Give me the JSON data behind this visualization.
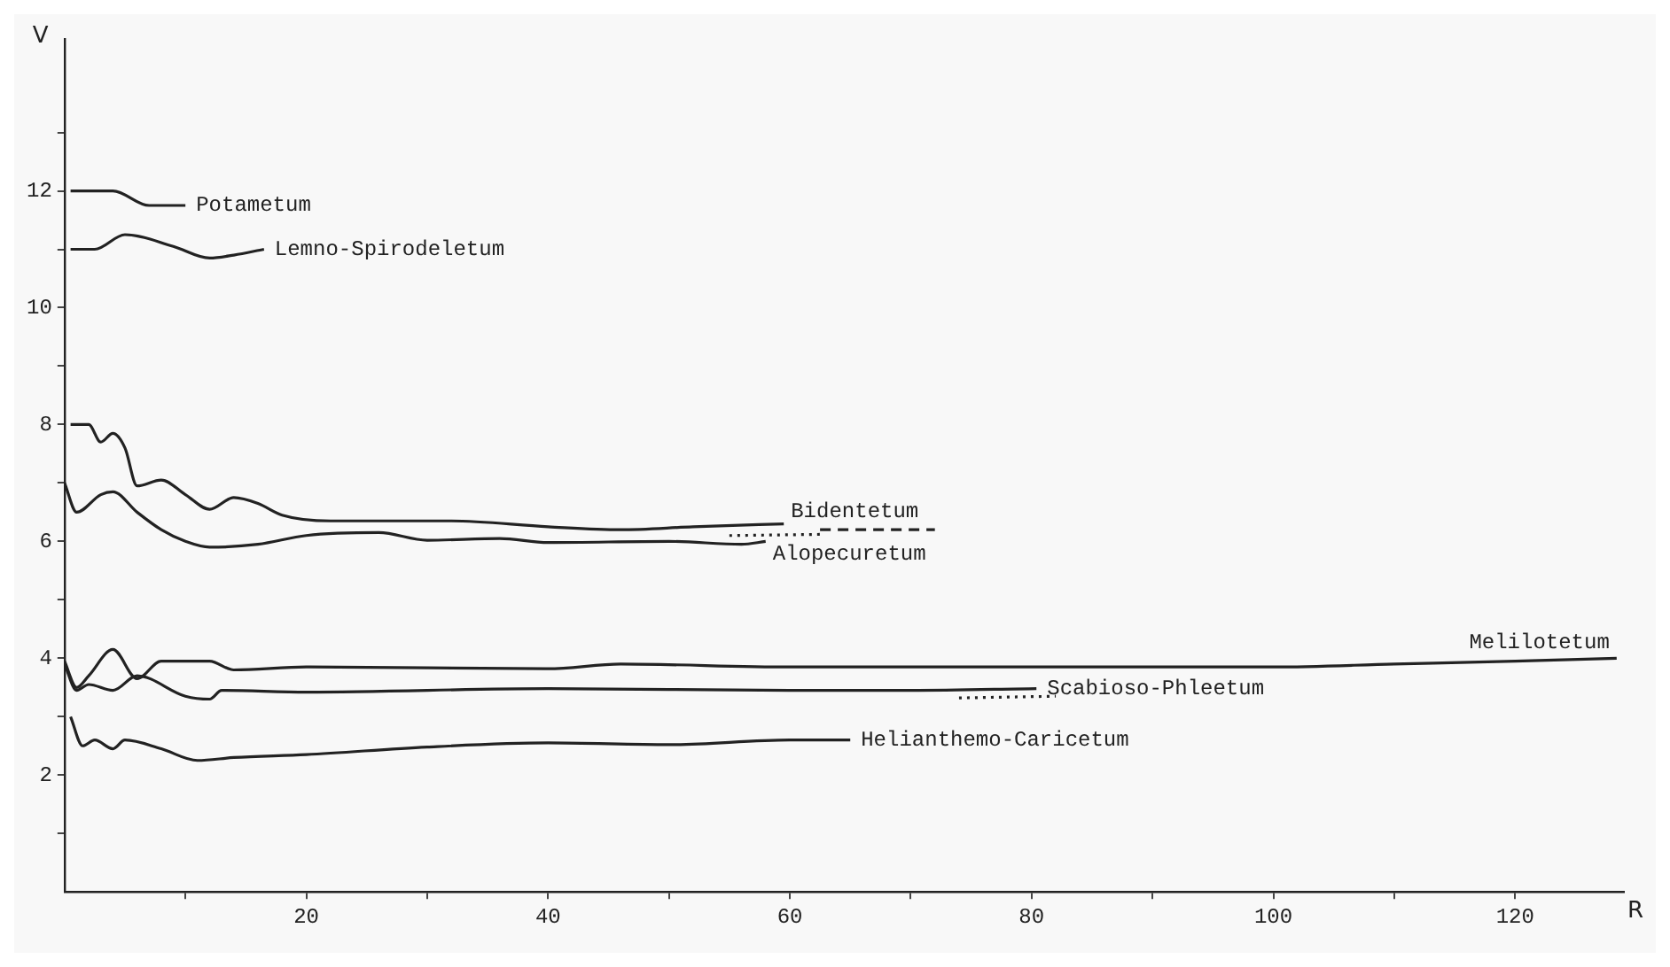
{
  "chart_data": {
    "type": "line",
    "xlabel": "R",
    "ylabel": "V",
    "xlim": [
      0,
      129
    ],
    "ylim": [
      0,
      14.6
    ],
    "xticks": [
      {
        "value": 10,
        "label": null
      },
      20,
      {
        "value": 30,
        "label": null
      },
      40,
      {
        "value": 50,
        "label": null
      },
      60,
      {
        "value": 70,
        "label": null
      },
      80,
      {
        "value": 90,
        "label": null
      },
      100,
      {
        "value": 110,
        "label": null
      },
      120
    ],
    "yticks": [
      {
        "value": 1,
        "label": null
      },
      2,
      {
        "value": 3,
        "label": null
      },
      4,
      {
        "value": 5,
        "label": null
      },
      6,
      {
        "value": 7,
        "label": null
      },
      8,
      {
        "value": 9,
        "label": null
      },
      10,
      {
        "value": 11,
        "label": null
      },
      12,
      {
        "value": 13,
        "label": null
      }
    ],
    "grid": false,
    "legend": false,
    "marker": "none",
    "line_style": "solid",
    "series": [
      {
        "name": "Potametum",
        "color": "#222222",
        "x": [
          0.5,
          4,
          7,
          10
        ],
        "values": [
          12,
          12,
          11.75,
          11.75
        ]
      },
      {
        "name": "Lemno-Spirodeletum",
        "color": "#222222",
        "x": [
          0.5,
          2.5,
          5,
          9,
          12,
          14,
          16.5
        ],
        "values": [
          11,
          11,
          11.25,
          11.05,
          10.85,
          10.9,
          11
        ]
      },
      {
        "name": "Bidentetum",
        "color": "#222222",
        "x": [
          0.5,
          2,
          3,
          4,
          5,
          6,
          8,
          10,
          12,
          14,
          16,
          18,
          22,
          32,
          40,
          46,
          52,
          59.5
        ],
        "values": [
          8,
          8,
          7.7,
          7.85,
          7.6,
          6.95,
          7.05,
          6.8,
          6.55,
          6.75,
          6.65,
          6.45,
          6.35,
          6.35,
          6.25,
          6.2,
          6.25,
          6.3
        ]
      },
      {
        "color": "#222222",
        "line_style": "dashed",
        "x": [
          62.5,
          72
        ],
        "values": [
          6.2,
          6.2
        ]
      },
      {
        "name": "Alopecuretum",
        "color": "#222222",
        "x": [
          0,
          1,
          3,
          4,
          6,
          8,
          10,
          12,
          16,
          20,
          26,
          30,
          36,
          40,
          50,
          56,
          58
        ],
        "values": [
          7,
          6.5,
          6.8,
          6.85,
          6.5,
          6.2,
          6,
          5.9,
          5.95,
          6.1,
          6.15,
          6.02,
          6.05,
          5.98,
          6,
          5.95,
          6
        ]
      },
      {
        "color": "#222222",
        "line_style": "dotted",
        "x": [
          55,
          62.5
        ],
        "values": [
          6.1,
          6.12
        ]
      },
      {
        "name": "Melilotetum",
        "color": "#222222",
        "x": [
          0,
          1,
          2,
          4,
          6,
          8,
          12,
          14,
          20,
          40,
          46,
          60,
          80,
          100,
          110,
          120,
          128.4
        ],
        "values": [
          3.95,
          3.5,
          3.7,
          4.15,
          3.65,
          3.95,
          3.95,
          3.8,
          3.85,
          3.82,
          3.9,
          3.85,
          3.85,
          3.85,
          3.9,
          3.95,
          4
        ]
      },
      {
        "name": "Scabioso-Phleetum",
        "color": "#222222",
        "x": [
          0,
          1,
          2,
          4,
          6,
          10,
          12,
          13,
          20,
          40,
          60,
          70,
          80.4
        ],
        "values": [
          3.9,
          3.45,
          3.55,
          3.45,
          3.7,
          3.35,
          3.3,
          3.45,
          3.42,
          3.48,
          3.45,
          3.45,
          3.48
        ]
      },
      {
        "color": "#222222",
        "line_style": "dotted",
        "x": [
          74,
          82
        ],
        "values": [
          3.32,
          3.35
        ]
      },
      {
        "name": "Helianthemo-Caricetum",
        "color": "#222222",
        "x": [
          0.5,
          1.5,
          2.5,
          4,
          5,
          8,
          11,
          14,
          20,
          30,
          40,
          50,
          60,
          65
        ],
        "values": [
          3,
          2.5,
          2.6,
          2.45,
          2.6,
          2.45,
          2.25,
          2.3,
          2.35,
          2.48,
          2.55,
          2.52,
          2.6,
          2.6
        ]
      }
    ]
  }
}
